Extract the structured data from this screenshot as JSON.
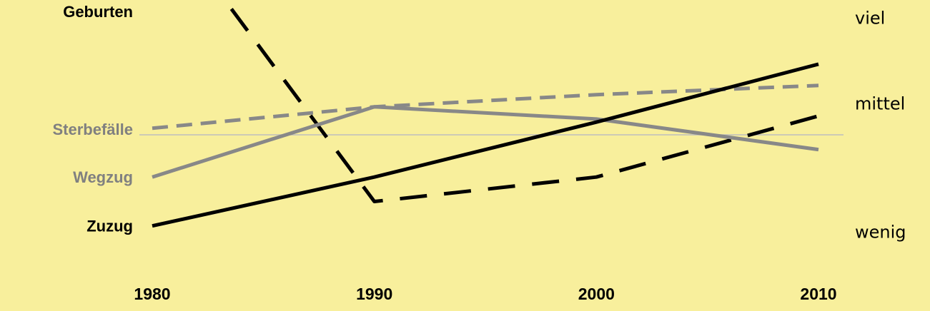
{
  "chart_data": {
    "type": "line",
    "title": "",
    "xlabel": "",
    "ylabel": "",
    "x": [
      1980,
      1990,
      2000,
      2010
    ],
    "x_tick_labels": [
      "1980",
      "1990",
      "2000",
      "2010"
    ],
    "ylim": [
      0,
      100
    ],
    "y_level_labels": [
      {
        "label": "viel",
        "value": 94
      },
      {
        "label": "mittel",
        "value": 66
      },
      {
        "label": "wenig",
        "value": 24
      }
    ],
    "reference_line": 66,
    "series": [
      {
        "name": "Geburten",
        "values": [
          132,
          34,
          42,
          62
        ],
        "color": "#000000",
        "style": "dashed-long"
      },
      {
        "name": "Sterbefälle",
        "values": [
          58,
          65,
          69,
          72
        ],
        "color": "#888888",
        "style": "dashed-short"
      },
      {
        "name": "Wegzug",
        "values": [
          42,
          65,
          61,
          51
        ],
        "color": "#888888",
        "style": "solid"
      },
      {
        "name": "Zuzug",
        "values": [
          26,
          42,
          60,
          79
        ],
        "color": "#000000",
        "style": "solid"
      }
    ],
    "grid": false,
    "legend": "left of lines"
  }
}
